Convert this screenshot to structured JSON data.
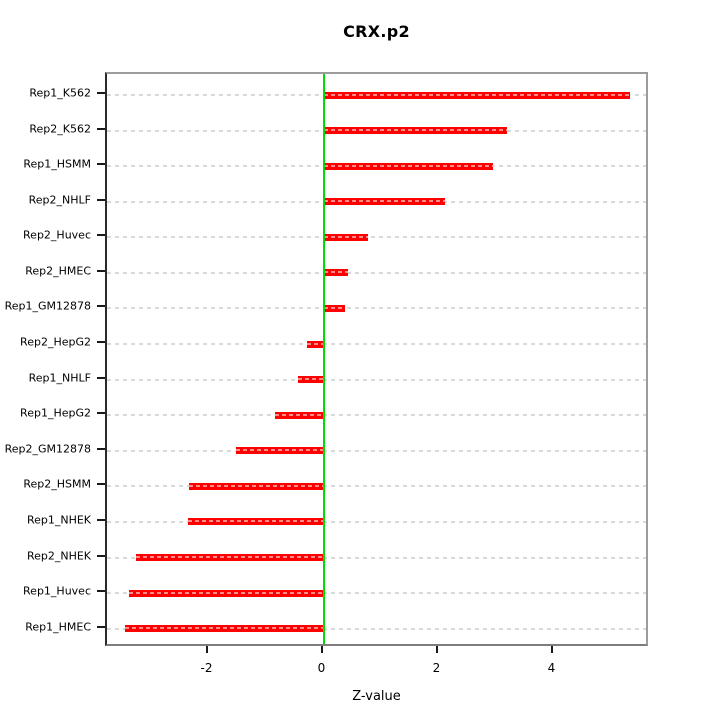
{
  "title": "CRX.p2",
  "chart_data": {
    "type": "bar",
    "orientation": "horizontal",
    "title": "CRX.p2",
    "xlabel": "Z-value",
    "ylabel": "",
    "categories": [
      "Rep1_K562",
      "Rep2_K562",
      "Rep1_HSMM",
      "Rep2_NHLF",
      "Rep2_Huvec",
      "Rep2_HMEC",
      "Rep1_GM12878",
      "Rep2_HepG2",
      "Rep1_NHLF",
      "Rep1_HepG2",
      "Rep2_GM12878",
      "Rep2_HSMM",
      "Rep1_NHEK",
      "Rep2_NHEK",
      "Rep1_Huvec",
      "Rep1_HMEC"
    ],
    "values": [
      5.33,
      3.19,
      2.95,
      2.11,
      0.77,
      0.42,
      0.37,
      -0.29,
      -0.45,
      -0.85,
      -1.53,
      -2.34,
      -2.36,
      -3.26,
      -3.38,
      -3.45
    ],
    "x_ticks": [
      -2,
      0,
      2,
      4
    ],
    "xlim": [
      -3.76,
      5.66
    ],
    "grid": true,
    "legend_position": "none",
    "bar_color": "#ff0000",
    "zero_line_color": "#00dd00",
    "grid_color": "#d9d9d9"
  }
}
